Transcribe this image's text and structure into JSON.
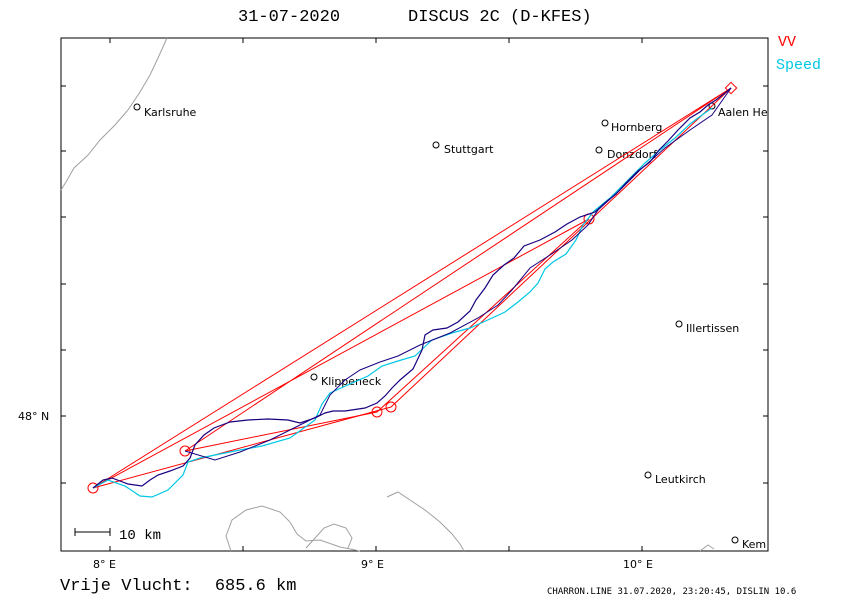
{
  "header": {
    "date": "31-07-2020",
    "glider": "DISCUS 2C (D-KFES)"
  },
  "legend": {
    "vv_label": "VV",
    "speed_label": "Speed",
    "vv_color": "#ff0000",
    "speed_color": "#00c8e6",
    "track_color": "#1a0080"
  },
  "axes": {
    "lon_labels": [
      "8° E",
      "9° E",
      "10° E"
    ],
    "lat_labels": [
      "48° N"
    ]
  },
  "towns": [
    {
      "name": "Karlsruhe"
    },
    {
      "name": "Stuttgart"
    },
    {
      "name": "Hornberg"
    },
    {
      "name": "Donzdorf"
    },
    {
      "name": "Aalen He"
    },
    {
      "name": "Illertissen"
    },
    {
      "name": "Klippeneck"
    },
    {
      "name": "Leutkirch"
    },
    {
      "name": "Kem"
    }
  ],
  "scale_bar": {
    "label": "10 km"
  },
  "summary": {
    "label": "Vrije Vlucht:",
    "distance": "685.6 km"
  },
  "footer": {
    "text": "CHARRON.LINE 31.07.2020, 23:20:45, DISLIN 10.6"
  }
}
